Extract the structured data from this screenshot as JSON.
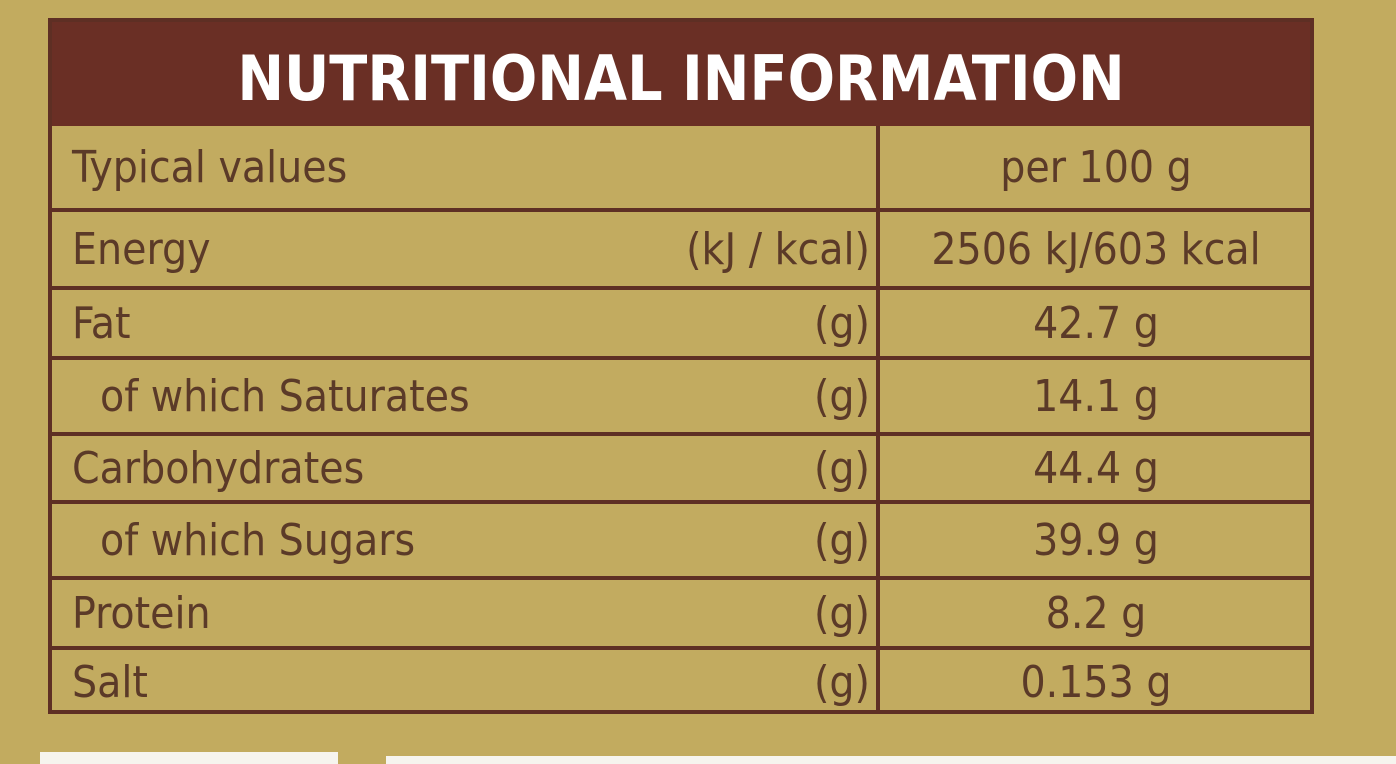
{
  "title": "NUTRITIONAL INFORMATION",
  "header": {
    "label": "Typical values",
    "per": "per 100 g"
  },
  "rows": [
    {
      "name": "Energy",
      "unit": "(kJ / kcal)",
      "value": "2506 kJ/603 kcal",
      "indent": false
    },
    {
      "name": "Fat",
      "unit": "(g)",
      "value": "42.7 g",
      "indent": false
    },
    {
      "name": "of which Saturates",
      "unit": "(g)",
      "value": "14.1 g",
      "indent": true
    },
    {
      "name": "Carbohydrates",
      "unit": "(g)",
      "value": "44.4 g",
      "indent": false
    },
    {
      "name": "of which Sugars",
      "unit": "(g)",
      "value": "39.9 g",
      "indent": true
    },
    {
      "name": "Protein",
      "unit": "(g)",
      "value": "8.2  g",
      "indent": false
    },
    {
      "name": "Salt",
      "unit": "(g)",
      "value": "0.153 g",
      "indent": false
    }
  ],
  "colors": {
    "background": "#c2ab5f",
    "header_bar": "#6a2f25",
    "border": "#5e2f24",
    "text": "#5b3a28"
  }
}
